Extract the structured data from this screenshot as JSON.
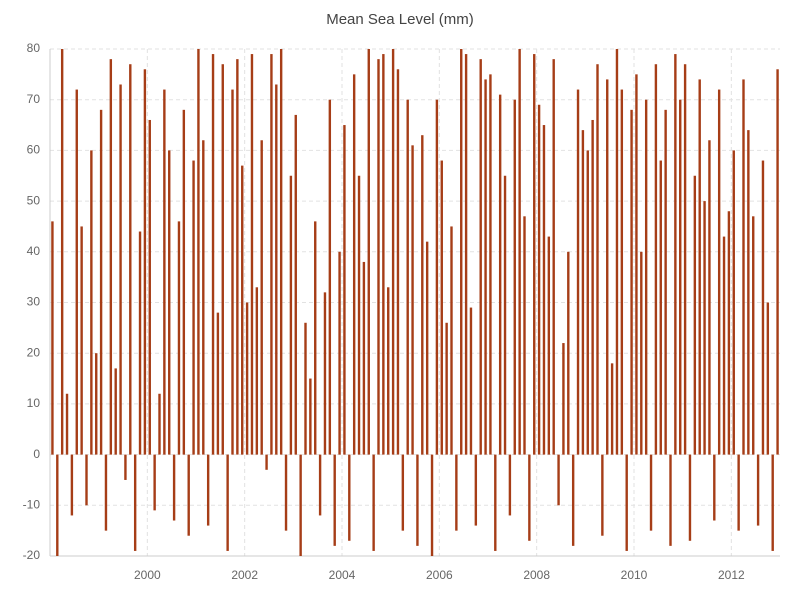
{
  "chart_data": {
    "type": "bar",
    "title": "Mean Sea Level (mm)",
    "x": [
      1998.05,
      1998.15,
      1998.25,
      1998.35,
      1998.45,
      1998.55,
      1998.65,
      1998.75,
      1998.85,
      1998.95,
      1999.05,
      1999.15,
      1999.25,
      1999.35,
      1999.45,
      1999.55,
      1999.65,
      1999.75,
      1999.85,
      1999.95,
      2000.05,
      2000.15,
      2000.25,
      2000.35,
      2000.45,
      2000.55,
      2000.65,
      2000.75,
      2000.85,
      2000.95,
      2001.05,
      2001.15,
      2001.25,
      2001.35,
      2001.45,
      2001.55,
      2001.65,
      2001.75,
      2001.85,
      2001.95,
      2002.05,
      2002.15,
      2002.25,
      2002.35,
      2002.45,
      2002.55,
      2002.65,
      2002.75,
      2002.85,
      2002.95,
      2003.05,
      2003.15,
      2003.25,
      2003.35,
      2003.45,
      2003.55,
      2003.65,
      2003.75,
      2003.85,
      2003.95,
      2004.05,
      2004.15,
      2004.25,
      2004.35,
      2004.45,
      2004.55,
      2004.65,
      2004.75,
      2004.85,
      2004.95,
      2005.05,
      2005.15,
      2005.25,
      2005.35,
      2005.45,
      2005.55,
      2005.65,
      2005.75,
      2005.85,
      2005.95,
      2006.05,
      2006.15,
      2006.25,
      2006.35,
      2006.45,
      2006.55,
      2006.65,
      2006.75,
      2006.85,
      2006.95,
      2007.05,
      2007.15,
      2007.25,
      2007.35,
      2007.45,
      2007.55,
      2007.65,
      2007.75,
      2007.85,
      2007.95,
      2008.05,
      2008.15,
      2008.25,
      2008.35,
      2008.45,
      2008.55,
      2008.65,
      2008.75,
      2008.85,
      2008.95,
      2009.05,
      2009.15,
      2009.25,
      2009.35,
      2009.45,
      2009.55,
      2009.65,
      2009.75,
      2009.85,
      2009.95,
      2010.05,
      2010.15,
      2010.25,
      2010.35,
      2010.45,
      2010.55,
      2010.65,
      2010.75,
      2010.85,
      2010.95,
      2011.05,
      2011.15,
      2011.25,
      2011.35,
      2011.45,
      2011.55,
      2011.65,
      2011.75,
      2011.85,
      2011.95,
      2012.05,
      2012.15,
      2012.25,
      2012.35,
      2012.45,
      2012.55,
      2012.65,
      2012.75,
      2012.85,
      2012.95
    ],
    "values": [
      46,
      -20,
      80,
      12,
      -12,
      72,
      45,
      -10,
      60,
      20,
      68,
      -15,
      78,
      17,
      73,
      -5,
      77,
      -19,
      44,
      76,
      66,
      -11,
      12,
      72,
      60,
      -13,
      46,
      68,
      -16,
      58,
      80,
      62,
      -14,
      79,
      28,
      77,
      -19,
      72,
      78,
      57,
      30,
      79,
      33,
      62,
      -3,
      79,
      73,
      80,
      -15,
      55,
      67,
      -20,
      26,
      15,
      46,
      -12,
      32,
      70,
      -18,
      40,
      65,
      -17,
      75,
      55,
      38,
      80,
      -19,
      78,
      79,
      33,
      80,
      76,
      -15,
      70,
      61,
      -18,
      63,
      42,
      -20,
      70,
      58,
      26,
      45,
      -15,
      80,
      79,
      29,
      -14,
      78,
      74,
      75,
      -19,
      71,
      55,
      -12,
      70,
      80,
      47,
      -17,
      79,
      69,
      65,
      43,
      78,
      -10,
      22,
      40,
      -18,
      72,
      64,
      60,
      66,
      77,
      -16,
      74,
      18,
      80,
      72,
      -19,
      68,
      75,
      40,
      70,
      -15,
      77,
      58,
      68,
      -18,
      79,
      70,
      77,
      -17,
      55,
      74,
      50,
      62,
      -13,
      72,
      43,
      48,
      60,
      -15,
      74,
      64,
      47,
      -14,
      58,
      30,
      -19,
      76
    ],
    "color": "#a63d17",
    "xlim": [
      1998,
      2013
    ],
    "xticks": [
      2000,
      2002,
      2004,
      2006,
      2008,
      2010,
      2012
    ],
    "ylim": [
      -20,
      80
    ],
    "yticks": [
      -20,
      -10,
      0,
      10,
      20,
      30,
      40,
      50,
      60,
      70,
      80
    ],
    "grid": true
  }
}
